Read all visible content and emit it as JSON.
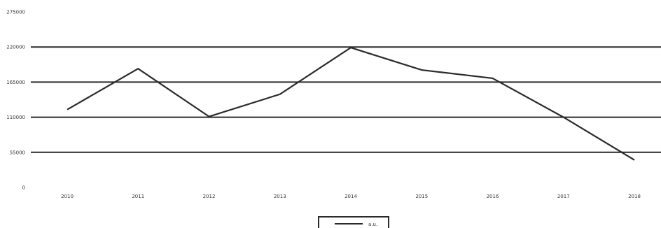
{
  "chart_data": {
    "type": "line",
    "title": "",
    "xlabel": "",
    "ylabel": "",
    "categories": [
      "2010",
      "2011",
      "2012",
      "2013",
      "2014",
      "2015",
      "2016",
      "2017",
      "2018"
    ],
    "series": [
      {
        "name": "a.u.",
        "values": [
          122000,
          186000,
          111000,
          146000,
          219000,
          184000,
          171000,
          110000,
          43000
        ],
        "color": "#2b2b2b"
      }
    ],
    "ylim": [
      0,
      275000
    ],
    "yticks": [
      0,
      55000,
      110000,
      165000,
      220000,
      275000
    ],
    "grid": true,
    "legend_position": "bottom-center"
  }
}
